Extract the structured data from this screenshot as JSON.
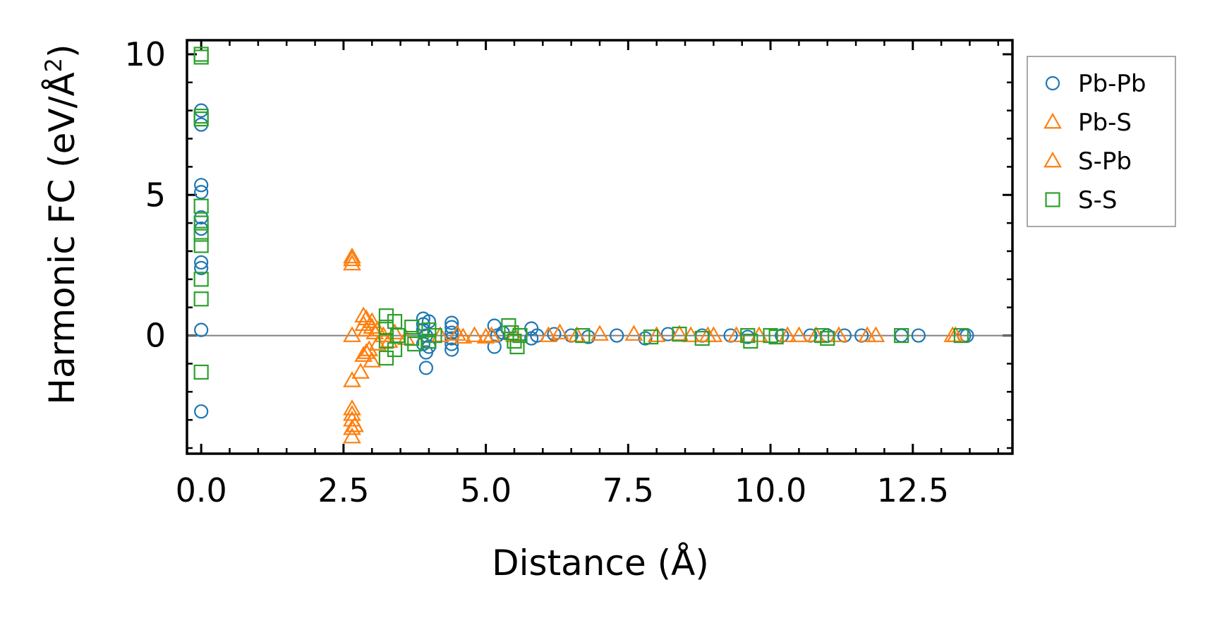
{
  "chart_data": {
    "type": "scatter",
    "title": "",
    "xlabel": "Distance (Å)",
    "ylabel_main": "Harmonic FC (eV/Å",
    "ylabel_sup": "2",
    "ylabel_close": ")",
    "xlim": [
      -0.25,
      14.25
    ],
    "ylim": [
      -4.2,
      10.5
    ],
    "xticks": [
      0.0,
      2.5,
      5.0,
      7.5,
      10.0,
      12.5
    ],
    "xtick_labels": [
      "0.0",
      "2.5",
      "5.0",
      "7.5",
      "10.0",
      "12.5"
    ],
    "yticks": [
      0,
      5,
      10
    ],
    "ytick_labels": [
      "0",
      "5",
      "10"
    ],
    "zero_line": true,
    "legend_position": "outside-right-top",
    "series": [
      {
        "name": "Pb-Pb",
        "marker": "circle",
        "color": "#1f77b4",
        "points": [
          [
            0,
            8.0
          ],
          [
            0,
            7.5
          ],
          [
            0,
            5.35
          ],
          [
            0,
            5.1
          ],
          [
            0,
            4.2
          ],
          [
            0,
            3.8
          ],
          [
            0,
            2.6
          ],
          [
            0,
            2.4
          ],
          [
            0,
            0.2
          ],
          [
            0,
            -2.7
          ],
          [
            3.9,
            0.6
          ],
          [
            3.9,
            0.4
          ],
          [
            3.9,
            0.2
          ],
          [
            3.9,
            -0.3
          ],
          [
            3.95,
            -0.6
          ],
          [
            3.95,
            -1.15
          ],
          [
            3.95,
            0.0
          ],
          [
            4.0,
            0.5
          ],
          [
            4.0,
            -0.4
          ],
          [
            4.4,
            0.45
          ],
          [
            4.4,
            0.3
          ],
          [
            4.4,
            0.1
          ],
          [
            4.4,
            -0.1
          ],
          [
            4.4,
            -0.3
          ],
          [
            4.4,
            -0.5
          ],
          [
            5.15,
            0.35
          ],
          [
            5.15,
            -0.4
          ],
          [
            5.2,
            0.0
          ],
          [
            5.3,
            0.1
          ],
          [
            5.8,
            0.25
          ],
          [
            5.8,
            -0.1
          ],
          [
            5.9,
            0.0
          ],
          [
            6.2,
            0.05
          ],
          [
            6.5,
            0.0
          ],
          [
            6.8,
            -0.05
          ],
          [
            7.3,
            0.0
          ],
          [
            7.8,
            -0.1
          ],
          [
            8.2,
            0.05
          ],
          [
            8.8,
            0.0
          ],
          [
            9.3,
            0.0
          ],
          [
            9.6,
            -0.05
          ],
          [
            10.2,
            0.0
          ],
          [
            10.7,
            0.0
          ],
          [
            11.0,
            0.0
          ],
          [
            11.3,
            0.0
          ],
          [
            11.6,
            0.0
          ],
          [
            12.3,
            0.0
          ],
          [
            12.6,
            0.0
          ],
          [
            13.4,
            0.0
          ],
          [
            13.45,
            0.0
          ]
        ]
      },
      {
        "name": "Pb-S",
        "marker": "triangle",
        "color": "#ff7f0e",
        "points": [
          [
            2.65,
            2.8
          ],
          [
            2.65,
            2.55
          ],
          [
            2.65,
            0.0
          ],
          [
            2.65,
            -1.6
          ],
          [
            2.65,
            -2.6
          ],
          [
            2.65,
            -3.0
          ],
          [
            2.65,
            -3.3
          ],
          [
            2.65,
            -3.6
          ],
          [
            2.8,
            -1.3
          ],
          [
            2.85,
            0.7
          ],
          [
            2.85,
            0.4
          ],
          [
            2.85,
            -0.7
          ],
          [
            2.9,
            0.6
          ],
          [
            2.9,
            0.2
          ],
          [
            2.95,
            -0.5
          ],
          [
            3.0,
            0.3
          ],
          [
            3.0,
            -0.9
          ],
          [
            3.05,
            0.1
          ],
          [
            3.1,
            -0.3
          ],
          [
            3.2,
            0.0
          ],
          [
            3.4,
            0.1
          ],
          [
            3.6,
            -0.1
          ],
          [
            4.2,
            0.0
          ],
          [
            4.5,
            0.05
          ],
          [
            4.8,
            0.0
          ],
          [
            5.0,
            -0.05
          ],
          [
            5.5,
            0.0
          ],
          [
            6.3,
            0.1
          ],
          [
            6.6,
            0.0
          ],
          [
            7.6,
            0.05
          ],
          [
            8.0,
            0.0
          ],
          [
            8.4,
            0.05
          ],
          [
            8.9,
            0.0
          ],
          [
            9.4,
            0.0
          ],
          [
            9.8,
            0.0
          ],
          [
            10.3,
            0.0
          ],
          [
            10.8,
            0.0
          ],
          [
            11.2,
            0.0
          ],
          [
            11.85,
            0.0
          ],
          [
            13.2,
            0.0
          ]
        ]
      },
      {
        "name": "S-Pb",
        "marker": "triangle",
        "color": "#ff7f0e",
        "points": [
          [
            2.65,
            2.7
          ],
          [
            2.65,
            -2.8
          ],
          [
            2.7,
            -3.2
          ],
          [
            2.9,
            -0.6
          ],
          [
            3.0,
            0.5
          ],
          [
            3.1,
            0.2
          ],
          [
            3.3,
            -0.2
          ],
          [
            4.6,
            -0.05
          ],
          [
            5.1,
            0.0
          ],
          [
            6.1,
            0.0
          ],
          [
            7.0,
            0.05
          ],
          [
            8.6,
            0.0
          ],
          [
            9.0,
            0.0
          ],
          [
            10.5,
            0.0
          ],
          [
            11.7,
            0.0
          ],
          [
            13.25,
            0.0
          ]
        ]
      },
      {
        "name": "S-S",
        "marker": "square",
        "color": "#2ca02c",
        "points": [
          [
            0,
            10.0
          ],
          [
            0,
            9.9
          ],
          [
            0,
            7.8
          ],
          [
            0,
            7.7
          ],
          [
            0,
            4.6
          ],
          [
            0,
            4.0
          ],
          [
            0,
            3.6
          ],
          [
            0,
            3.2
          ],
          [
            0,
            2.0
          ],
          [
            0,
            1.3
          ],
          [
            0,
            -1.3
          ],
          [
            3.25,
            0.7
          ],
          [
            3.25,
            0.3
          ],
          [
            3.25,
            -0.2
          ],
          [
            3.25,
            -0.8
          ],
          [
            3.4,
            0.5
          ],
          [
            3.4,
            -0.5
          ],
          [
            3.45,
            0.0
          ],
          [
            3.7,
            0.3
          ],
          [
            3.7,
            -0.1
          ],
          [
            3.75,
            -0.3
          ],
          [
            4.0,
            0.2
          ],
          [
            4.0,
            -0.2
          ],
          [
            4.1,
            0.0
          ],
          [
            5.4,
            0.35
          ],
          [
            5.45,
            0.1
          ],
          [
            5.5,
            -0.2
          ],
          [
            5.55,
            -0.4
          ],
          [
            5.6,
            0.0
          ],
          [
            6.7,
            0.0
          ],
          [
            7.9,
            -0.05
          ],
          [
            8.4,
            0.05
          ],
          [
            8.8,
            -0.1
          ],
          [
            9.6,
            0.0
          ],
          [
            9.65,
            -0.2
          ],
          [
            10.0,
            0.0
          ],
          [
            10.1,
            -0.05
          ],
          [
            10.9,
            0.0
          ],
          [
            11.0,
            -0.1
          ],
          [
            12.3,
            0.0
          ],
          [
            13.35,
            0.0
          ]
        ]
      }
    ]
  }
}
